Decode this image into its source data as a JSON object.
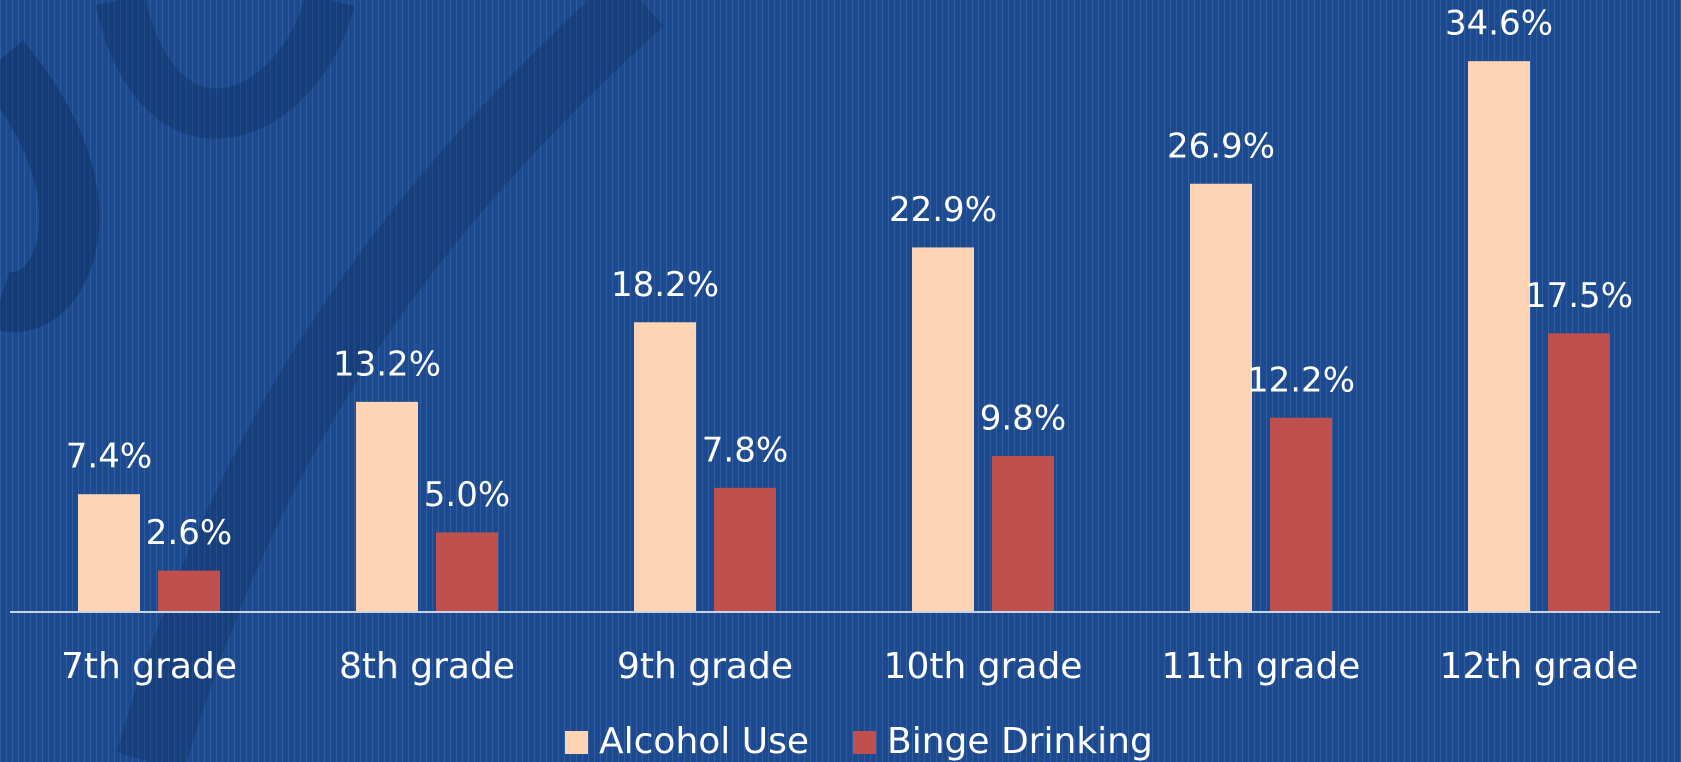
{
  "chart_data": {
    "type": "bar",
    "categories": [
      "7th grade",
      "8th grade",
      "9th grade",
      "10th grade",
      "11th grade",
      "12th grade"
    ],
    "series": [
      {
        "name": "Alcohol Use",
        "color": "#fdd5b4",
        "values": [
          7.4,
          13.2,
          18.2,
          22.9,
          26.9,
          34.6
        ],
        "value_labels": [
          "7.4%",
          "13.2%",
          "18.2%",
          "22.9%",
          "26.9%",
          "34.6%"
        ]
      },
      {
        "name": "Binge Drinking",
        "color": "#c0504d",
        "values": [
          2.6,
          5.0,
          7.8,
          9.8,
          12.2,
          17.5
        ],
        "value_labels": [
          "2.6%",
          "5.0%",
          "7.8%",
          "9.8%",
          "12.2%",
          "17.5%"
        ]
      }
    ],
    "legend": "bottom"
  }
}
